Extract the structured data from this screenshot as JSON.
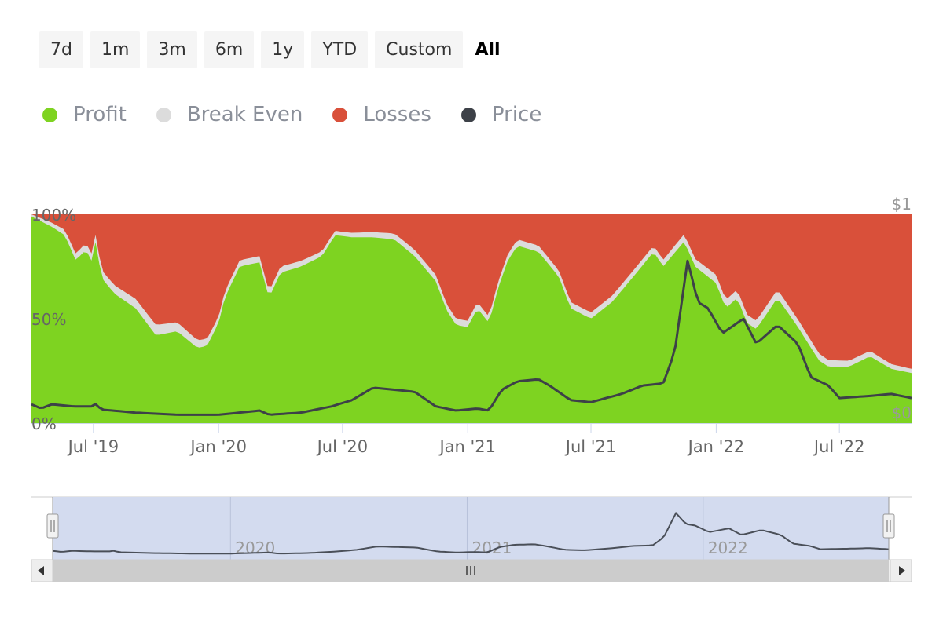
{
  "range_selector": {
    "buttons": [
      "7d",
      "1m",
      "3m",
      "6m",
      "1y",
      "YTD",
      "Custom",
      "All"
    ],
    "selected": "All"
  },
  "colors": {
    "profit": "#7ed321",
    "break_even": "#dcdcdc",
    "losses": "#d9503a",
    "price": "#3d4148",
    "navigator_fill": "#d3dbef"
  },
  "chart_data": {
    "type": "area",
    "stacking": "percent",
    "x_start": "2019-04-01",
    "x_end": "2022-10-15",
    "x_ticks": [
      {
        "label": "Jul '19",
        "date": "2019-07-01"
      },
      {
        "label": "Jan '20",
        "date": "2020-01-01"
      },
      {
        "label": "Jul '20",
        "date": "2020-07-01"
      },
      {
        "label": "Jan '21",
        "date": "2021-01-01"
      },
      {
        "label": "Jul '21",
        "date": "2021-07-01"
      },
      {
        "label": "Jan '22",
        "date": "2022-01-01"
      },
      {
        "label": "Jul '22",
        "date": "2022-07-01"
      }
    ],
    "y_left_ticks": [
      "0%",
      "50%",
      "100%"
    ],
    "y_right_ticks": [
      "$0",
      "$1"
    ],
    "ylim": [
      0,
      100
    ],
    "price_ylim": [
      0,
      1
    ],
    "series": [
      {
        "name": "Profit",
        "unit": "%",
        "points": [
          [
            "2019-04-01",
            99
          ],
          [
            "2019-05-01",
            94
          ],
          [
            "2019-05-20",
            90
          ],
          [
            "2019-06-05",
            78
          ],
          [
            "2019-06-20",
            83
          ],
          [
            "2019-07-01",
            76
          ],
          [
            "2019-07-05",
            90
          ],
          [
            "2019-07-12",
            70
          ],
          [
            "2019-08-01",
            62
          ],
          [
            "2019-09-01",
            55
          ],
          [
            "2019-10-01",
            42
          ],
          [
            "2019-11-01",
            44
          ],
          [
            "2019-12-01",
            36
          ],
          [
            "2019-12-15",
            37
          ],
          [
            "2020-01-01",
            48
          ],
          [
            "2020-01-10",
            60
          ],
          [
            "2020-02-01",
            75
          ],
          [
            "2020-03-01",
            77
          ],
          [
            "2020-03-15",
            60
          ],
          [
            "2020-04-01",
            72
          ],
          [
            "2020-05-01",
            75
          ],
          [
            "2020-06-01",
            80
          ],
          [
            "2020-06-20",
            90
          ],
          [
            "2020-07-15",
            89
          ],
          [
            "2020-08-15",
            89
          ],
          [
            "2020-09-15",
            88
          ],
          [
            "2020-10-15",
            80
          ],
          [
            "2020-11-15",
            68
          ],
          [
            "2020-12-01",
            54
          ],
          [
            "2020-12-15",
            47
          ],
          [
            "2021-01-01",
            46
          ],
          [
            "2021-01-15",
            55
          ],
          [
            "2021-02-01",
            48
          ],
          [
            "2021-02-15",
            65
          ],
          [
            "2021-03-01",
            78
          ],
          [
            "2021-03-15",
            85
          ],
          [
            "2021-04-15",
            82
          ],
          [
            "2021-05-15",
            70
          ],
          [
            "2021-06-01",
            55
          ],
          [
            "2021-07-01",
            50
          ],
          [
            "2021-08-01",
            58
          ],
          [
            "2021-09-01",
            70
          ],
          [
            "2021-10-01",
            82
          ],
          [
            "2021-10-15",
            75
          ],
          [
            "2021-11-15",
            87
          ],
          [
            "2021-12-01",
            75
          ],
          [
            "2022-01-01",
            67
          ],
          [
            "2022-01-15",
            55
          ],
          [
            "2022-02-01",
            60
          ],
          [
            "2022-02-15",
            48
          ],
          [
            "2022-03-01",
            45
          ],
          [
            "2022-04-01",
            60
          ],
          [
            "2022-05-01",
            46
          ],
          [
            "2022-06-01",
            30
          ],
          [
            "2022-06-15",
            27
          ],
          [
            "2022-07-15",
            27
          ],
          [
            "2022-08-15",
            32
          ],
          [
            "2022-09-15",
            26
          ],
          [
            "2022-10-15",
            24
          ]
        ]
      },
      {
        "name": "Break Even",
        "unit": "%",
        "points": [
          [
            "2019-04-01",
            1
          ],
          [
            "2019-06-01",
            3
          ],
          [
            "2019-08-01",
            4
          ],
          [
            "2019-10-01",
            5
          ],
          [
            "2020-01-01",
            3
          ],
          [
            "2020-04-01",
            3
          ],
          [
            "2020-07-01",
            2
          ],
          [
            "2020-10-01",
            3
          ],
          [
            "2021-01-01",
            3
          ],
          [
            "2021-04-01",
            3
          ],
          [
            "2021-07-01",
            3
          ],
          [
            "2021-10-01",
            3
          ],
          [
            "2022-01-01",
            4
          ],
          [
            "2022-04-01",
            4
          ],
          [
            "2022-07-01",
            3
          ],
          [
            "2022-10-15",
            2
          ]
        ]
      },
      {
        "name": "Losses",
        "unit": "%",
        "points": "remainder to 100%"
      },
      {
        "name": "Price",
        "unit": "$",
        "points": [
          [
            "2019-04-01",
            0.09
          ],
          [
            "2019-04-15",
            0.07
          ],
          [
            "2019-05-01",
            0.09
          ],
          [
            "2019-06-01",
            0.08
          ],
          [
            "2019-07-01",
            0.08
          ],
          [
            "2019-07-05",
            0.095
          ],
          [
            "2019-07-12",
            0.065
          ],
          [
            "2019-09-01",
            0.05
          ],
          [
            "2019-11-01",
            0.04
          ],
          [
            "2020-01-01",
            0.04
          ],
          [
            "2020-03-01",
            0.06
          ],
          [
            "2020-03-15",
            0.04
          ],
          [
            "2020-05-01",
            0.05
          ],
          [
            "2020-06-15",
            0.08
          ],
          [
            "2020-07-15",
            0.11
          ],
          [
            "2020-08-15",
            0.17
          ],
          [
            "2020-09-15",
            0.16
          ],
          [
            "2020-10-15",
            0.15
          ],
          [
            "2020-11-15",
            0.08
          ],
          [
            "2020-12-15",
            0.06
          ],
          [
            "2021-01-15",
            0.07
          ],
          [
            "2021-02-01",
            0.06
          ],
          [
            "2021-02-20",
            0.16
          ],
          [
            "2021-03-15",
            0.2
          ],
          [
            "2021-04-15",
            0.21
          ],
          [
            "2021-05-01",
            0.18
          ],
          [
            "2021-06-01",
            0.11
          ],
          [
            "2021-07-01",
            0.1
          ],
          [
            "2021-08-15",
            0.14
          ],
          [
            "2021-09-15",
            0.18
          ],
          [
            "2021-10-15",
            0.19
          ],
          [
            "2021-11-01",
            0.34
          ],
          [
            "2021-11-20",
            0.78
          ],
          [
            "2021-12-05",
            0.58
          ],
          [
            "2021-12-20",
            0.55
          ],
          [
            "2022-01-10",
            0.43
          ],
          [
            "2022-02-10",
            0.5
          ],
          [
            "2022-03-01",
            0.38
          ],
          [
            "2022-04-01",
            0.47
          ],
          [
            "2022-05-01",
            0.38
          ],
          [
            "2022-05-20",
            0.22
          ],
          [
            "2022-06-15",
            0.18
          ],
          [
            "2022-07-01",
            0.12
          ],
          [
            "2022-08-15",
            0.13
          ],
          [
            "2022-09-15",
            0.14
          ],
          [
            "2022-10-15",
            0.12
          ]
        ]
      }
    ],
    "navigator": {
      "labels": [
        {
          "label": "2020",
          "date": "2020-01-01"
        },
        {
          "label": "2021",
          "date": "2021-01-01"
        },
        {
          "label": "2022",
          "date": "2022-01-01"
        }
      ],
      "handle_glyph": "||",
      "scroll_glyph": "|||"
    }
  }
}
